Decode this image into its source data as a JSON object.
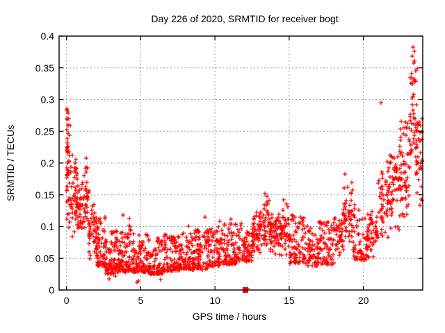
{
  "figure": {
    "title": "Day 226 of 2020, SRMTID for receiver bogt"
  },
  "chart_data": {
    "type": "scatter",
    "title": "Day 226 of 2020, SRMTID for receiver bogt",
    "xlabel": "GPS time / hours",
    "ylabel": "SRMTID / TECUs",
    "xlim": [
      -0.5,
      24
    ],
    "ylim": [
      0,
      0.4
    ],
    "xticks": [
      0,
      5,
      10,
      15,
      20
    ],
    "yticks": [
      0,
      0.05,
      0.1,
      0.15,
      0.2,
      0.25,
      0.3,
      0.35,
      0.4
    ],
    "ytick_labels": [
      "0",
      "0.05",
      "0.1",
      "0.15",
      "0.2",
      "0.25",
      "0.3",
      "0.35",
      "0.4"
    ],
    "xtick_labels": [
      "0",
      "5",
      "10",
      "15",
      "20"
    ],
    "grid": {
      "on": true,
      "style": "dashed",
      "color": "#a0a0a0"
    },
    "marker": {
      "shape": "plus",
      "color": "#ff0000",
      "size": 7
    },
    "legend": "none",
    "seed": 20200226,
    "square_points": [
      [
        12.05,
        0.0
      ]
    ],
    "outlier_points": [
      [
        0.03,
        0.285
      ],
      [
        0.05,
        0.282
      ],
      [
        0.08,
        0.27
      ],
      [
        1.32,
        0.208
      ],
      [
        2.85,
        0.018
      ],
      [
        3.3,
        0.022
      ],
      [
        3.82,
        0.118
      ],
      [
        4.22,
        0.113
      ],
      [
        4.75,
        0.012
      ],
      [
        4.85,
        0.014
      ],
      [
        6.35,
        0.016
      ],
      [
        8.2,
        0.101
      ],
      [
        9.35,
        0.115
      ],
      [
        10.3,
        0.108
      ],
      [
        11.05,
        0.112
      ],
      [
        12.2,
        0.002
      ],
      [
        13.35,
        0.152
      ],
      [
        13.5,
        0.148
      ],
      [
        14.62,
        0.142
      ],
      [
        14.8,
        0.135
      ],
      [
        18.75,
        0.182
      ],
      [
        21.2,
        0.295
      ],
      [
        23.28,
        0.368
      ],
      [
        23.35,
        0.383
      ],
      [
        23.42,
        0.376
      ]
    ],
    "density_bands": [
      [
        0.0,
        0.12,
        20,
        0.16,
        0.285,
        "u"
      ],
      [
        0.0,
        0.35,
        34,
        0.095,
        0.27,
        "u"
      ],
      [
        0.3,
        0.75,
        40,
        0.08,
        0.225,
        "c"
      ],
      [
        0.7,
        1.25,
        45,
        0.065,
        0.185,
        "c"
      ],
      [
        1.2,
        1.55,
        28,
        0.07,
        0.205,
        "c"
      ],
      [
        1.5,
        2.1,
        48,
        0.045,
        0.14,
        "c"
      ],
      [
        2.0,
        2.65,
        55,
        0.038,
        0.115,
        "b"
      ],
      [
        2.6,
        3.25,
        60,
        0.025,
        0.095,
        "b"
      ],
      [
        3.2,
        4.0,
        75,
        0.028,
        0.095,
        "b"
      ],
      [
        4.0,
        4.55,
        50,
        0.03,
        0.105,
        "b"
      ],
      [
        4.5,
        5.5,
        85,
        0.028,
        0.088,
        "b"
      ],
      [
        5.5,
        6.5,
        85,
        0.025,
        0.082,
        "b"
      ],
      [
        6.5,
        7.5,
        85,
        0.03,
        0.088,
        "b"
      ],
      [
        7.5,
        8.5,
        85,
        0.032,
        0.092,
        "b"
      ],
      [
        8.5,
        9.5,
        85,
        0.032,
        0.096,
        "b"
      ],
      [
        9.5,
        10.5,
        85,
        0.038,
        0.1,
        "b"
      ],
      [
        10.5,
        11.5,
        85,
        0.04,
        0.105,
        "b"
      ],
      [
        11.5,
        12.55,
        80,
        0.045,
        0.108,
        "b"
      ],
      [
        12.5,
        13.05,
        45,
        0.05,
        0.125,
        "c"
      ],
      [
        13.0,
        13.75,
        55,
        0.058,
        0.148,
        "c"
      ],
      [
        13.7,
        14.35,
        48,
        0.05,
        0.125,
        "c"
      ],
      [
        14.3,
        15.05,
        52,
        0.048,
        0.135,
        "c"
      ],
      [
        15.0,
        16.0,
        70,
        0.042,
        0.118,
        "b"
      ],
      [
        16.0,
        17.0,
        70,
        0.038,
        0.102,
        "b"
      ],
      [
        17.0,
        18.0,
        70,
        0.04,
        0.108,
        "b"
      ],
      [
        18.0,
        18.65,
        45,
        0.045,
        0.125,
        "c"
      ],
      [
        18.6,
        19.4,
        55,
        0.06,
        0.178,
        "c"
      ],
      [
        19.35,
        20.3,
        55,
        0.048,
        0.128,
        "b"
      ],
      [
        20.25,
        21.0,
        50,
        0.05,
        0.138,
        "c"
      ],
      [
        21.0,
        21.85,
        55,
        0.068,
        0.21,
        "c"
      ],
      [
        21.8,
        22.55,
        58,
        0.085,
        0.25,
        "c"
      ],
      [
        22.5,
        23.12,
        52,
        0.1,
        0.305,
        "c"
      ],
      [
        23.1,
        23.62,
        46,
        0.13,
        0.385,
        "c"
      ],
      [
        23.55,
        23.98,
        36,
        0.115,
        0.3,
        "c"
      ]
    ]
  }
}
